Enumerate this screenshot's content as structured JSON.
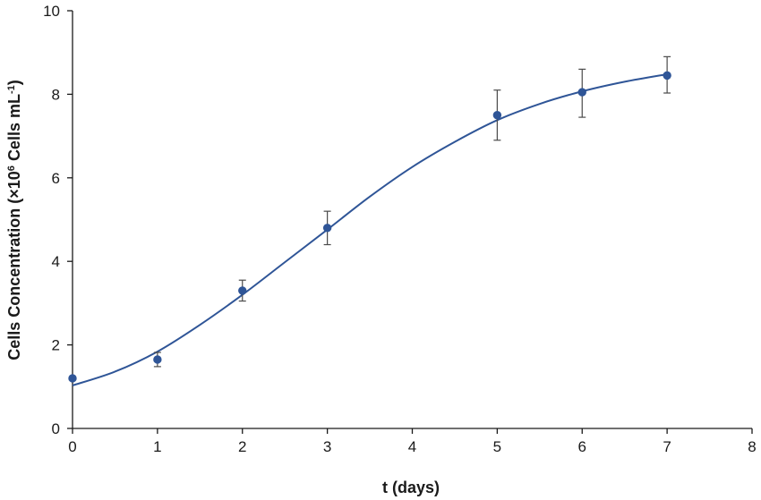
{
  "chart_data": {
    "type": "scatter",
    "title": "",
    "xlabel": "t (days)",
    "ylabel": {
      "main": "Cells Concentration (×10",
      "sup1": "6",
      "mid": " Cells mL",
      "sup2": "-1",
      "end": ")"
    },
    "xlim": [
      0,
      8
    ],
    "ylim": [
      0,
      10
    ],
    "x_ticks": [
      0,
      1,
      2,
      3,
      4,
      5,
      6,
      7,
      8
    ],
    "y_ticks": [
      0,
      2,
      4,
      6,
      8,
      10
    ],
    "grid": false,
    "legend": "none",
    "series": [
      {
        "kind": "points-with-error",
        "color": "#2f5597",
        "x": [
          0,
          1,
          2,
          3,
          5,
          6,
          7
        ],
        "y": [
          1.2,
          1.65,
          3.3,
          4.8,
          7.5,
          8.05,
          8.45
        ],
        "y_err_low": [
          0.0,
          0.17,
          0.25,
          0.4,
          0.6,
          0.6,
          0.42
        ],
        "y_err_high": [
          0.0,
          0.17,
          0.25,
          0.4,
          0.6,
          0.55,
          0.45
        ]
      },
      {
        "kind": "fit-curve",
        "color": "#2f5597",
        "x": [
          0,
          0.5,
          1,
          1.5,
          2,
          2.5,
          3,
          3.5,
          4,
          4.5,
          5,
          5.5,
          6,
          6.5,
          7
        ],
        "y": [
          1.03,
          1.36,
          1.84,
          2.48,
          3.2,
          3.98,
          4.76,
          5.55,
          6.26,
          6.86,
          7.38,
          7.77,
          8.07,
          8.3,
          8.48
        ]
      }
    ]
  }
}
